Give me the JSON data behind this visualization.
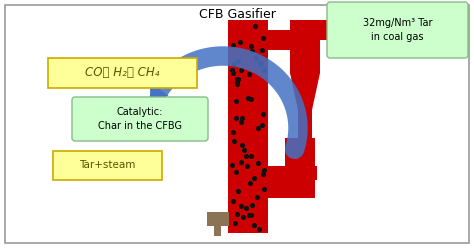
{
  "title": "CFB Gasifier",
  "bg_color": "#ffffff",
  "border_color": "#999999",
  "red_color": "#cc0000",
  "blue_color": "#4472c4",
  "dot_color": "#111111",
  "label_co_text": "CO、 H₂、 CH₄",
  "label_catalytic_line1": "Catalytic:",
  "label_catalytic_line2": "Char in the CFBG",
  "label_tar_text": "Tar+steam",
  "label_tar_box_text": "32mg/Nm³ Tar\nin coal gas",
  "yellow_bg": "#ffff99",
  "yellow_edge": "#ccaa00",
  "green_bg": "#ccffcc",
  "green_edge": "#88bb88",
  "cup_color": "#8B7355"
}
